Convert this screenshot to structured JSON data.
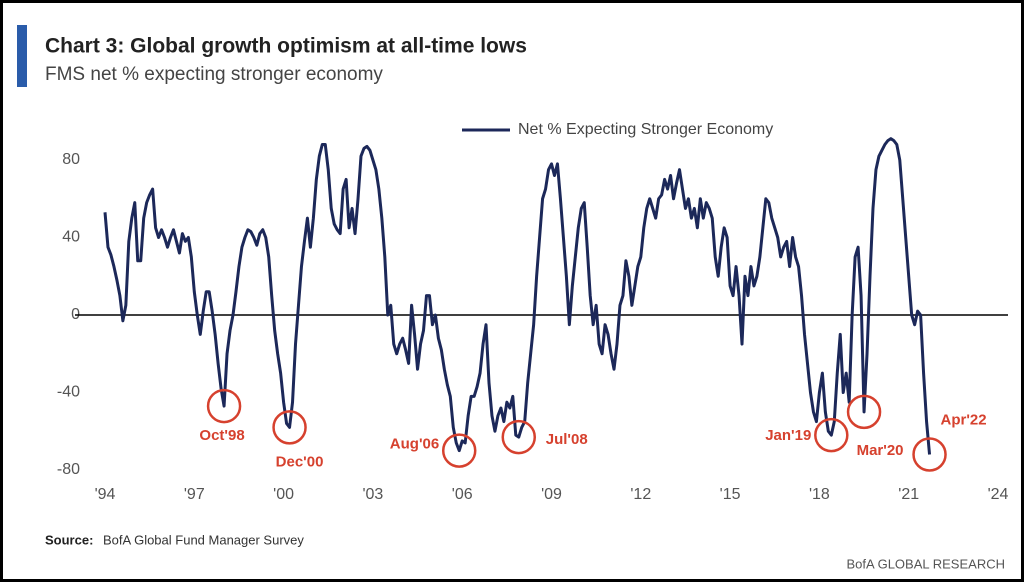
{
  "chart_data": {
    "type": "line",
    "title": "Chart 3: Global growth optimism at all-time lows",
    "subtitle": "FMS net % expecting stronger economy",
    "source_label": "Source:",
    "source": "BofA Global Fund Manager Survey",
    "footer": "BofA GLOBAL RESEARCH",
    "x": [
      1994,
      1994.1,
      1994.2,
      1994.3,
      1994.4,
      1994.5,
      1994.6,
      1994.7,
      1994.8,
      1994.9,
      1995,
      1995.1,
      1995.2,
      1995.3,
      1995.4,
      1995.5,
      1995.6,
      1995.7,
      1995.8,
      1995.9,
      1996,
      1996.1,
      1996.2,
      1996.3,
      1996.4,
      1996.5,
      1996.6,
      1996.7,
      1996.8,
      1996.9,
      1997,
      1997.1,
      1997.2,
      1997.3,
      1997.4,
      1997.5,
      1997.6,
      1997.7,
      1997.8,
      1997.9,
      1998,
      1998.1,
      1998.2,
      1998.3,
      1998.4,
      1998.5,
      1998.6,
      1998.7,
      1998.8,
      1998.9,
      1999,
      1999.1,
      1999.2,
      1999.3,
      1999.4,
      1999.5,
      1999.6,
      1999.7,
      1999.8,
      1999.9,
      2000,
      2000.1,
      2000.2,
      2000.3,
      2000.4,
      2000.5,
      2000.6,
      2000.7,
      2000.8,
      2000.9,
      2001,
      2001.1,
      2001.2,
      2001.3,
      2001.4,
      2001.5,
      2001.6,
      2001.7,
      2001.8,
      2001.9,
      2002,
      2002.1,
      2002.2,
      2002.3,
      2002.4,
      2002.5,
      2002.6,
      2002.7,
      2002.8,
      2002.9,
      2003,
      2003.1,
      2003.2,
      2003.3,
      2003.4,
      2003.5,
      2003.6,
      2003.7,
      2003.8,
      2003.9,
      2004,
      2004.1,
      2004.2,
      2004.3,
      2004.4,
      2004.5,
      2004.6,
      2004.7,
      2004.8,
      2004.9,
      2005,
      2005.1,
      2005.2,
      2005.3,
      2005.4,
      2005.5,
      2005.6,
      2005.7,
      2005.8,
      2005.9,
      2006,
      2006.1,
      2006.2,
      2006.3,
      2006.4,
      2006.5,
      2006.6,
      2006.7,
      2006.8,
      2006.9,
      2007,
      2007.1,
      2007.2,
      2007.3,
      2007.4,
      2007.5,
      2007.6,
      2007.7,
      2007.8,
      2007.9,
      2008,
      2008.1,
      2008.2,
      2008.3,
      2008.4,
      2008.5,
      2008.6,
      2008.7,
      2008.8,
      2008.9,
      2009,
      2009.1,
      2009.2,
      2009.3,
      2009.4,
      2009.5,
      2009.6,
      2009.7,
      2009.8,
      2009.9,
      2010,
      2010.1,
      2010.2,
      2010.3,
      2010.4,
      2010.5,
      2010.6,
      2010.7,
      2010.8,
      2010.9,
      2011,
      2011.1,
      2011.2,
      2011.3,
      2011.4,
      2011.5,
      2011.6,
      2011.7,
      2011.8,
      2011.9,
      2012,
      2012.1,
      2012.2,
      2012.3,
      2012.4,
      2012.5,
      2012.6,
      2012.7,
      2012.8,
      2012.9,
      2013,
      2013.1,
      2013.2,
      2013.3,
      2013.4,
      2013.5,
      2013.6,
      2013.7,
      2013.8,
      2013.9,
      2014,
      2014.1,
      2014.2,
      2014.3,
      2014.4,
      2014.5,
      2014.6,
      2014.7,
      2014.8,
      2014.9,
      2015,
      2015.1,
      2015.2,
      2015.3,
      2015.4,
      2015.5,
      2015.6,
      2015.7,
      2015.8,
      2015.9,
      2016,
      2016.1,
      2016.2,
      2016.3,
      2016.4,
      2016.5,
      2016.6,
      2016.7,
      2016.8,
      2016.9,
      2017,
      2017.1,
      2017.2,
      2017.3,
      2017.4,
      2017.5,
      2017.6,
      2017.7,
      2017.8,
      2017.9,
      2018,
      2018.1,
      2018.2,
      2018.3,
      2018.4,
      2018.5,
      2018.6,
      2018.7,
      2018.8,
      2018.9,
      2019,
      2019.1,
      2019.2,
      2019.3,
      2019.4,
      2019.5,
      2019.6,
      2019.7,
      2019.8,
      2019.9,
      2020,
      2020.1,
      2020.2,
      2020.3,
      2020.4,
      2020.5,
      2020.6,
      2020.7,
      2020.8,
      2020.9,
      2021,
      2021.1,
      2021.2,
      2021.3,
      2021.4,
      2021.5,
      2021.6,
      2021.7
    ],
    "series": [
      {
        "name": "Net % Expecting Stronger Economy",
        "color": "#1c2859",
        "values": [
          53,
          35,
          31,
          25,
          18,
          10,
          -3,
          5,
          38,
          50,
          58,
          28,
          28,
          50,
          58,
          62,
          65,
          45,
          40,
          44,
          40,
          35,
          40,
          44,
          38,
          32,
          42,
          38,
          40,
          30,
          12,
          0,
          -10,
          2,
          12,
          12,
          2,
          -10,
          -25,
          -38,
          -47,
          -20,
          -8,
          0,
          12,
          25,
          35,
          40,
          44,
          43,
          40,
          36,
          42,
          44,
          40,
          30,
          10,
          -8,
          -20,
          -30,
          -45,
          -56,
          -58,
          -45,
          -15,
          5,
          25,
          38,
          50,
          35,
          50,
          70,
          82,
          88,
          88,
          75,
          55,
          47,
          44,
          42,
          65,
          70,
          45,
          55,
          42,
          60,
          82,
          86,
          87,
          85,
          80,
          75,
          65,
          50,
          30,
          0,
          5,
          -15,
          -20,
          -15,
          -12,
          -18,
          -25,
          5,
          -10,
          -28,
          -15,
          -8,
          10,
          10,
          -5,
          0,
          -12,
          -18,
          -28,
          -36,
          -42,
          -58,
          -66,
          -70,
          -65,
          -66,
          -52,
          -42,
          -42,
          -37,
          -30,
          -15,
          -5,
          -35,
          -52,
          -60,
          -52,
          -48,
          -55,
          -45,
          -48,
          -42,
          -62,
          -63,
          -58,
          -55,
          -35,
          -20,
          -5,
          20,
          40,
          60,
          65,
          75,
          78,
          72,
          78,
          60,
          40,
          20,
          -5,
          15,
          30,
          45,
          55,
          58,
          35,
          10,
          -5,
          5,
          -15,
          -20,
          -5,
          -10,
          -20,
          -28,
          -15,
          5,
          10,
          28,
          20,
          5,
          15,
          25,
          30,
          45,
          55,
          60,
          55,
          50,
          60,
          62,
          70,
          65,
          72,
          60,
          68,
          75,
          65,
          55,
          60,
          50,
          55,
          45,
          60,
          50,
          58,
          55,
          50,
          30,
          20,
          35,
          45,
          40,
          15,
          10,
          25,
          10,
          -15,
          20,
          10,
          25,
          15,
          20,
          30,
          45,
          60,
          58,
          50,
          45,
          40,
          30,
          35,
          38,
          25,
          40,
          30,
          25,
          10,
          -10,
          -25,
          -40,
          -50,
          -55,
          -40,
          -30,
          -50,
          -60,
          -62,
          -55,
          -30,
          -10,
          -40,
          -30,
          -45,
          0,
          30,
          35,
          10,
          -50,
          -20,
          20,
          55,
          75,
          82,
          85,
          88,
          90,
          91,
          90,
          88,
          80,
          60,
          40,
          20,
          0,
          -5,
          2,
          0,
          -30,
          -55,
          -72
        ]
      }
    ],
    "xlim": [
      1994,
      2024
    ],
    "xticks": [
      {
        "value": 1994,
        "label": "'94"
      },
      {
        "value": 1997,
        "label": "'97"
      },
      {
        "value": 2000,
        "label": "'00"
      },
      {
        "value": 2003,
        "label": "'03"
      },
      {
        "value": 2006,
        "label": "'06"
      },
      {
        "value": 2009,
        "label": "'09"
      },
      {
        "value": 2012,
        "label": "'12"
      },
      {
        "value": 2015,
        "label": "'15"
      },
      {
        "value": 2018,
        "label": "'18"
      },
      {
        "value": 2021,
        "label": "'21"
      },
      {
        "value": 2024,
        "label": "'24"
      }
    ],
    "ylim": [
      -90,
      100
    ],
    "yticks": [
      80,
      40,
      0,
      -40,
      -80
    ],
    "zero_line": true,
    "legend": "top",
    "annotations": [
      {
        "label": "Oct'98",
        "x": 1998.0,
        "y": -47,
        "color": "#d6412e"
      },
      {
        "label": "Dec'00",
        "x": 2000.2,
        "y": -58,
        "color": "#d6412e"
      },
      {
        "label": "Aug'06",
        "x": 2005.9,
        "y": -70,
        "color": "#d6412e"
      },
      {
        "label": "Jul'08",
        "x": 2007.9,
        "y": -63,
        "color": "#d6412e"
      },
      {
        "label": "Jan'19",
        "x": 2018.4,
        "y": -62,
        "color": "#d6412e"
      },
      {
        "label": "Mar'20",
        "x": 2019.5,
        "y": -50,
        "color": "#d6412e"
      },
      {
        "label": "Apr'22",
        "x": 2021.7,
        "y": -72,
        "color": "#d6412e"
      }
    ]
  }
}
